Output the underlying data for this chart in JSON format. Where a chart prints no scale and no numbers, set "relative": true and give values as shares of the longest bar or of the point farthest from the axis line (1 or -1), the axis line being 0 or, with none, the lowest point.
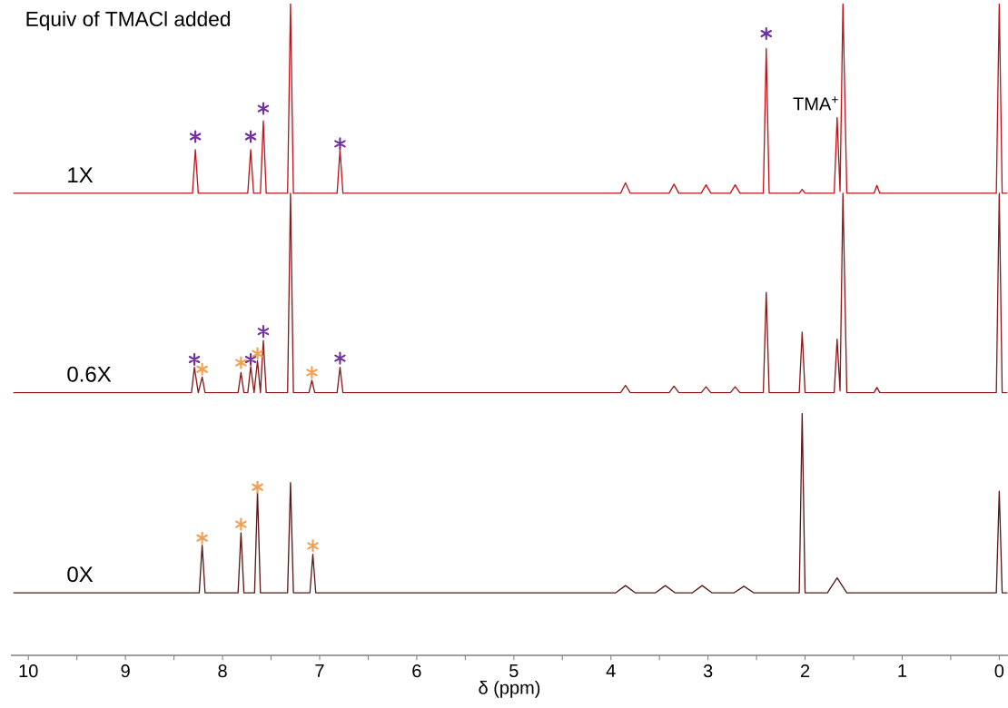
{
  "chart_data": {
    "type": "line",
    "relative": true,
    "xlabel": "δ (ppm)",
    "annotations": [
      "Equiv of TMACl added",
      "TMA$^{+}$"
    ],
    "xlim": [
      10.18,
      -0.09
    ],
    "xticks": [
      10,
      {
        "value": 9.5,
        "label": null
      },
      9,
      {
        "value": 8.5,
        "label": null
      },
      8,
      {
        "value": 7.5,
        "label": null
      },
      7,
      {
        "value": 6.5,
        "label": null
      },
      6,
      {
        "value": 5.5,
        "label": null
      },
      5,
      {
        "value": 4.5,
        "label": null
      },
      4,
      {
        "value": 3.5,
        "label": null
      },
      3,
      {
        "value": 2.5,
        "label": null
      },
      2,
      {
        "value": 1.5,
        "label": null
      },
      1,
      {
        "value": 0.5,
        "label": null
      },
      0
    ],
    "marker": "none",
    "line_style": "solid",
    "series": [
      {
        "name": "1X",
        "color": "#c0141a",
        "x": [
          10.15,
          8.31,
          8.28,
          8.25,
          7.74,
          7.71,
          7.68,
          7.61,
          7.58,
          7.55,
          7.33,
          7.3,
          7.27,
          6.82,
          6.79,
          6.76,
          3.9,
          3.85,
          3.8,
          3.4,
          3.35,
          3.3,
          3.07,
          3.02,
          2.97,
          2.77,
          2.72,
          2.67,
          2.43,
          2.4,
          2.37,
          2.06,
          2.03,
          2.0,
          1.7,
          1.67,
          1.64,
          1.61,
          1.57,
          1.29,
          1.26,
          1.23,
          0.03,
          0.0,
          -0.03,
          -0.08
        ],
        "values": [
          0.709,
          0.709,
          0.776,
          0.709,
          0.709,
          0.776,
          0.709,
          0.709,
          0.82,
          0.709,
          0.709,
          1.0,
          0.709,
          0.709,
          0.776,
          0.709,
          0.709,
          0.725,
          0.709,
          0.709,
          0.723,
          0.709,
          0.709,
          0.722,
          0.709,
          0.709,
          0.722,
          0.709,
          0.709,
          0.931,
          0.709,
          0.709,
          0.715,
          0.709,
          0.709,
          0.825,
          0.712,
          1.0,
          0.709,
          0.709,
          0.721,
          0.709,
          0.709,
          1.0,
          0.709,
          0.709
        ]
      },
      {
        "name": "0.6X",
        "color": "#8b1a1a",
        "x": [
          10.15,
          8.32,
          8.29,
          8.25,
          8.21,
          8.18,
          7.84,
          7.81,
          7.78,
          7.74,
          7.71,
          7.675,
          7.64,
          7.61,
          7.58,
          7.55,
          7.33,
          7.3,
          7.27,
          7.11,
          7.08,
          7.05,
          6.82,
          6.79,
          6.76,
          3.9,
          3.85,
          3.8,
          3.4,
          3.35,
          3.3,
          3.07,
          3.02,
          2.97,
          2.77,
          2.72,
          2.67,
          2.43,
          2.4,
          2.37,
          2.06,
          2.03,
          2.0,
          1.7,
          1.67,
          1.64,
          1.61,
          1.57,
          1.29,
          1.26,
          1.23,
          0.03,
          0.0,
          -0.03,
          -0.08
        ],
        "values": [
          0.403,
          0.403,
          0.442,
          0.403,
          0.427,
          0.403,
          0.403,
          0.434,
          0.403,
          0.403,
          0.443,
          0.403,
          0.452,
          0.403,
          0.483,
          0.403,
          0.403,
          0.709,
          0.403,
          0.403,
          0.422,
          0.403,
          0.403,
          0.442,
          0.403,
          0.403,
          0.414,
          0.403,
          0.403,
          0.413,
          0.403,
          0.403,
          0.412,
          0.403,
          0.403,
          0.412,
          0.403,
          0.403,
          0.557,
          0.403,
          0.403,
          0.496,
          0.403,
          0.403,
          0.485,
          0.406,
          0.709,
          0.403,
          0.403,
          0.411,
          0.403,
          0.403,
          0.709,
          0.403,
          0.403
        ]
      },
      {
        "name": "0X",
        "color": "#5a1818",
        "x": [
          10.15,
          8.24,
          8.21,
          8.18,
          7.84,
          7.81,
          7.78,
          7.67,
          7.64,
          7.61,
          7.33,
          7.3,
          7.27,
          7.1,
          7.07,
          7.04,
          3.95,
          3.85,
          3.75,
          3.54,
          3.44,
          3.34,
          3.16,
          3.06,
          2.96,
          2.73,
          2.63,
          2.53,
          2.06,
          2.03,
          2.0,
          1.77,
          1.67,
          1.57,
          0.03,
          0.0,
          -0.03,
          -0.08
        ],
        "values": [
          0.096,
          0.096,
          0.169,
          0.096,
          0.096,
          0.188,
          0.096,
          0.096,
          0.251,
          0.096,
          0.096,
          0.265,
          0.096,
          0.096,
          0.155,
          0.096,
          0.096,
          0.107,
          0.096,
          0.096,
          0.107,
          0.096,
          0.096,
          0.107,
          0.096,
          0.096,
          0.106,
          0.096,
          0.096,
          0.371,
          0.096,
          0.096,
          0.119,
          0.096,
          0.096,
          0.252,
          0.096,
          0.096
        ]
      },
      {
        "type": "scatter",
        "marker": "cross",
        "color": "#7030a0",
        "x": [
          8.28,
          7.71,
          7.58,
          6.79,
          2.4,
          8.29,
          7.71,
          7.58,
          6.79
        ],
        "values": [
          0.796,
          0.796,
          0.839,
          0.785,
          0.954,
          0.454,
          0.454,
          0.497,
          0.456
        ]
      },
      {
        "type": "scatter",
        "marker": "cross",
        "color": "#f0a050",
        "x": [
          8.21,
          7.81,
          7.64,
          7.08,
          8.21,
          7.81,
          7.64,
          7.07
        ],
        "values": [
          0.439,
          0.449,
          0.463,
          0.434,
          0.18,
          0.201,
          0.258,
          0.168
        ]
      }
    ]
  }
}
